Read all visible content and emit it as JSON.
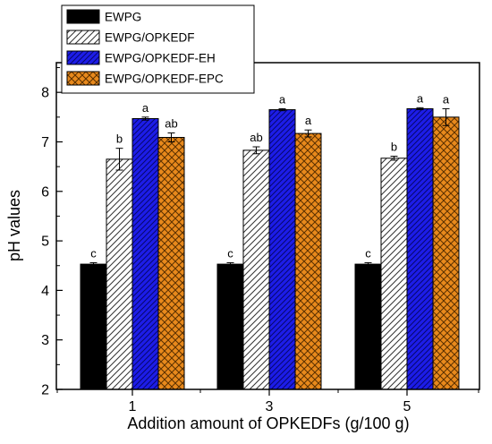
{
  "chart_data": {
    "type": "bar",
    "xlabel": "Addition amount of OPKEDFs (g/100 g)",
    "ylabel": "pH values",
    "categories": [
      "1",
      "3",
      "5"
    ],
    "ylim": [
      2,
      8.6
    ],
    "yticks": [
      "2",
      "3",
      "4",
      "5",
      "6",
      "7",
      "8"
    ],
    "series": [
      {
        "name": "EWPG",
        "color": "#000000",
        "pattern": "solid",
        "values": [
          4.53,
          4.53,
          4.53
        ],
        "errors": [
          0.03,
          0.03,
          0.03
        ],
        "labels": [
          "c",
          "c",
          "c"
        ]
      },
      {
        "name": "EWPG/OPKEDF",
        "color": "#ffffff",
        "pattern": "diagonal-hatch",
        "values": [
          6.65,
          6.83,
          6.67
        ],
        "errors": [
          0.22,
          0.07,
          0.04
        ],
        "labels": [
          "b",
          "ab",
          "b"
        ]
      },
      {
        "name": "EWPG/OPKEDF-EH",
        "color": "#1d1de8",
        "pattern": "diagonal-hatch",
        "values": [
          7.47,
          7.65,
          7.67
        ],
        "errors": [
          0.03,
          0.02,
          0.02
        ],
        "labels": [
          "a",
          "a",
          "a"
        ]
      },
      {
        "name": "EWPG/OPKEDF-EPC",
        "color": "#e8891c",
        "pattern": "cross-hatch",
        "values": [
          7.09,
          7.17,
          7.5
        ],
        "errors": [
          0.09,
          0.07,
          0.17
        ],
        "labels": [
          "ab",
          "a",
          "a"
        ]
      }
    ],
    "legend_position": "top-left",
    "grid": false
  }
}
